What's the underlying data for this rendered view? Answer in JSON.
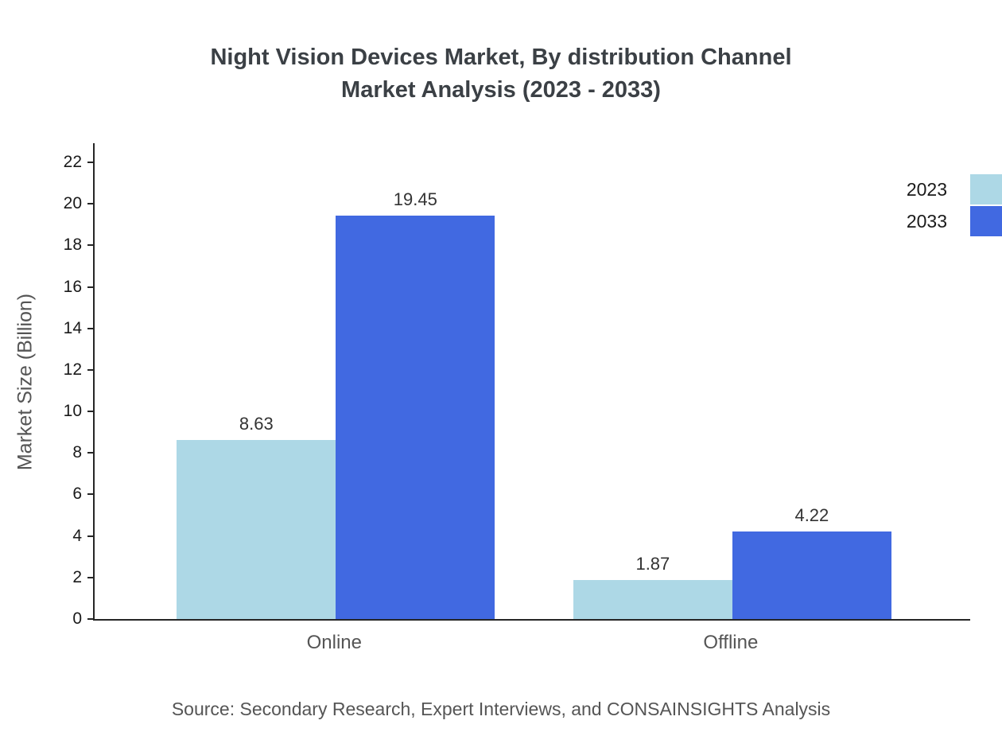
{
  "title": {
    "line1": "Night Vision Devices Market, By distribution Channel",
    "line2": "Market Analysis (2023 - 2033)"
  },
  "chart_data": {
    "type": "bar",
    "categories": [
      "Online",
      "Offline"
    ],
    "series": [
      {
        "name": "2023",
        "color": "#ADD8E6",
        "values": [
          8.63,
          1.87
        ]
      },
      {
        "name": "2033",
        "color": "#4169E1",
        "values": [
          19.45,
          4.22
        ]
      }
    ],
    "value_labels": [
      "8.63",
      "19.45",
      "1.87",
      "4.22"
    ],
    "xlabel": "",
    "ylabel": "Market Size (Billion)",
    "ylim": [
      0,
      23
    ],
    "yticks": [
      0,
      2,
      4,
      6,
      8,
      10,
      12,
      14,
      16,
      18,
      20,
      22
    ],
    "grid": false,
    "legend_position": "top-right"
  },
  "source": "Source: Secondary Research, Expert Interviews, and CONSAINSIGHTS Analysis"
}
